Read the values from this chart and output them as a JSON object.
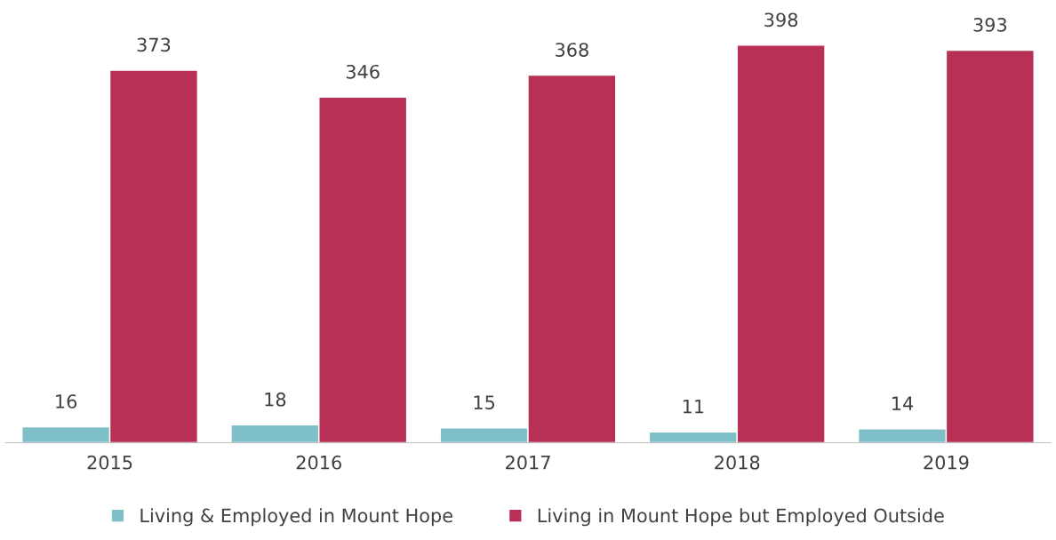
{
  "chart_data": {
    "type": "bar",
    "categories": [
      "2015",
      "2016",
      "2017",
      "2018",
      "2019"
    ],
    "series": [
      {
        "name": "Living & Employed in Mount Hope",
        "color": "#7fbfc8",
        "values": [
          16,
          18,
          15,
          11,
          14
        ]
      },
      {
        "name": "Living in Mount Hope but Employed Outside",
        "color": "#b83055",
        "values": [
          373,
          346,
          368,
          398,
          393
        ]
      }
    ],
    "data_labels": true,
    "legend": "bottom",
    "grid": false,
    "tick_labels": "x"
  }
}
